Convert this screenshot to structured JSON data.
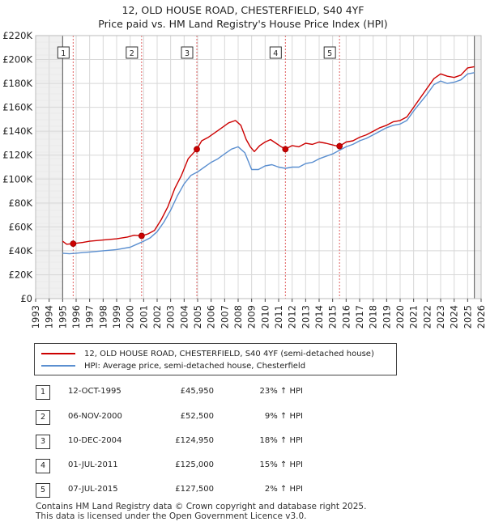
{
  "chart_data": {
    "type": "line",
    "title": "12, OLD HOUSE ROAD, CHESTERFIELD, S40 4YF",
    "subtitle": "Price paid vs. HM Land Registry's House Price Index (HPI)",
    "xlim": [
      1993,
      2026
    ],
    "ylim": [
      0,
      220000
    ],
    "x_ticks": [
      "1993",
      "1994",
      "1995",
      "1996",
      "1997",
      "1998",
      "1999",
      "2000",
      "2001",
      "2002",
      "2003",
      "2004",
      "2005",
      "2006",
      "2007",
      "2008",
      "2009",
      "2010",
      "2011",
      "2012",
      "2013",
      "2014",
      "2015",
      "2016",
      "2017",
      "2018",
      "2019",
      "2020",
      "2021",
      "2022",
      "2023",
      "2024",
      "2025",
      "2026"
    ],
    "y_ticks": [
      {
        "value": 0,
        "label": "£0"
      },
      {
        "value": 20000,
        "label": "£20K"
      },
      {
        "value": 40000,
        "label": "£40K"
      },
      {
        "value": 60000,
        "label": "£60K"
      },
      {
        "value": 80000,
        "label": "£80K"
      },
      {
        "value": 100000,
        "label": "£100K"
      },
      {
        "value": 120000,
        "label": "£120K"
      },
      {
        "value": 140000,
        "label": "£140K"
      },
      {
        "value": 160000,
        "label": "£160K"
      },
      {
        "value": 180000,
        "label": "£180K"
      },
      {
        "value": 200000,
        "label": "£200K"
      },
      {
        "value": 220000,
        "label": "£220K"
      }
    ],
    "data_range": [
      1995.0,
      2025.5
    ],
    "series": [
      {
        "name": "12, OLD HOUSE ROAD, CHESTERFIELD, S40 4YF (semi-detached house)",
        "color": "#cc0000",
        "points": [
          [
            1995.0,
            48000
          ],
          [
            1995.3,
            45500
          ],
          [
            1995.78,
            45950
          ],
          [
            1996.5,
            47000
          ],
          [
            1997,
            48000
          ],
          [
            1998,
            49000
          ],
          [
            1999,
            50000
          ],
          [
            1999.8,
            51500
          ],
          [
            2000.3,
            53000
          ],
          [
            2000.85,
            52500
          ],
          [
            2001.3,
            54000
          ],
          [
            2001.8,
            57000
          ],
          [
            2002.3,
            66000
          ],
          [
            2002.8,
            77000
          ],
          [
            2003.3,
            92000
          ],
          [
            2003.8,
            103000
          ],
          [
            2004.3,
            117000
          ],
          [
            2004.94,
            124950
          ],
          [
            2005.3,
            132000
          ],
          [
            2005.8,
            135000
          ],
          [
            2006.3,
            139000
          ],
          [
            2006.8,
            143000
          ],
          [
            2007.3,
            147000
          ],
          [
            2007.8,
            149000
          ],
          [
            2008.2,
            145000
          ],
          [
            2008.6,
            133000
          ],
          [
            2008.9,
            127000
          ],
          [
            2009.2,
            123000
          ],
          [
            2009.6,
            128000
          ],
          [
            2010.0,
            131000
          ],
          [
            2010.4,
            133000
          ],
          [
            2010.8,
            130000
          ],
          [
            2011.2,
            127000
          ],
          [
            2011.5,
            125000
          ],
          [
            2012,
            128000
          ],
          [
            2012.5,
            127000
          ],
          [
            2013,
            130000
          ],
          [
            2013.5,
            129000
          ],
          [
            2014,
            131000
          ],
          [
            2014.5,
            130000
          ],
          [
            2015.2,
            128000
          ],
          [
            2015.51,
            127500
          ],
          [
            2016,
            131000
          ],
          [
            2016.5,
            132000
          ],
          [
            2017,
            135000
          ],
          [
            2017.5,
            137000
          ],
          [
            2018,
            140000
          ],
          [
            2018.5,
            143000
          ],
          [
            2019,
            145000
          ],
          [
            2019.5,
            148000
          ],
          [
            2020,
            149000
          ],
          [
            2020.5,
            152000
          ],
          [
            2021,
            160000
          ],
          [
            2021.5,
            168000
          ],
          [
            2022,
            176000
          ],
          [
            2022.5,
            184000
          ],
          [
            2023,
            188000
          ],
          [
            2023.5,
            186000
          ],
          [
            2024,
            185000
          ],
          [
            2024.5,
            187000
          ],
          [
            2025,
            193000
          ],
          [
            2025.5,
            194000
          ]
        ]
      },
      {
        "name": "HPI: Average price, semi-detached house, Chesterfield",
        "color": "#5b8fd0",
        "points": [
          [
            1995.0,
            38000
          ],
          [
            1995.5,
            37500
          ],
          [
            1996,
            38000
          ],
          [
            1996.5,
            38500
          ],
          [
            1997,
            39000
          ],
          [
            1998,
            40000
          ],
          [
            1999,
            41000
          ],
          [
            2000,
            43000
          ],
          [
            2000.5,
            45500
          ],
          [
            2001,
            48000
          ],
          [
            2001.5,
            51000
          ],
          [
            2002,
            56000
          ],
          [
            2002.5,
            64000
          ],
          [
            2003,
            74000
          ],
          [
            2003.5,
            86000
          ],
          [
            2004,
            96000
          ],
          [
            2004.5,
            103000
          ],
          [
            2005,
            106000
          ],
          [
            2005.5,
            110000
          ],
          [
            2006,
            114000
          ],
          [
            2006.5,
            117000
          ],
          [
            2007,
            121000
          ],
          [
            2007.5,
            125000
          ],
          [
            2008,
            127000
          ],
          [
            2008.5,
            122000
          ],
          [
            2009,
            108000
          ],
          [
            2009.5,
            108000
          ],
          [
            2010,
            111000
          ],
          [
            2010.5,
            112000
          ],
          [
            2011,
            110000
          ],
          [
            2011.5,
            109000
          ],
          [
            2012,
            110000
          ],
          [
            2012.5,
            110000
          ],
          [
            2013,
            113000
          ],
          [
            2013.5,
            114000
          ],
          [
            2014,
            117000
          ],
          [
            2014.5,
            119000
          ],
          [
            2015,
            121000
          ],
          [
            2015.5,
            124000
          ],
          [
            2016,
            127000
          ],
          [
            2016.5,
            129000
          ],
          [
            2017,
            132000
          ],
          [
            2017.5,
            134000
          ],
          [
            2018,
            137000
          ],
          [
            2018.5,
            140000
          ],
          [
            2019,
            143000
          ],
          [
            2019.5,
            145000
          ],
          [
            2020,
            146000
          ],
          [
            2020.5,
            149000
          ],
          [
            2021,
            157000
          ],
          [
            2021.5,
            164000
          ],
          [
            2022,
            171000
          ],
          [
            2022.5,
            179000
          ],
          [
            2023,
            182000
          ],
          [
            2023.5,
            180000
          ],
          [
            2024,
            181000
          ],
          [
            2024.5,
            183000
          ],
          [
            2025,
            188000
          ],
          [
            2025.5,
            189000
          ]
        ]
      }
    ],
    "sales": [
      {
        "label": "1",
        "date": "12-OCT-1995",
        "x": 1995.78,
        "price": 45950,
        "price_label": "£45,950",
        "hpi": "23% ↑ HPI"
      },
      {
        "label": "2",
        "date": "06-NOV-2000",
        "x": 2000.85,
        "price": 52500,
        "price_label": "£52,500",
        "hpi": "9% ↑ HPI"
      },
      {
        "label": "3",
        "date": "10-DEC-2004",
        "x": 2004.94,
        "price": 124950,
        "price_label": "£124,950",
        "hpi": "18% ↑ HPI"
      },
      {
        "label": "4",
        "date": "01-JUL-2011",
        "x": 2011.5,
        "price": 125000,
        "price_label": "£125,000",
        "hpi": "15% ↑ HPI"
      },
      {
        "label": "5",
        "date": "07-JUL-2015",
        "x": 2015.51,
        "price": 127500,
        "price_label": "£127,500",
        "hpi": "2% ↑ HPI"
      }
    ],
    "legend": [
      "12, OLD HOUSE ROAD, CHESTERFIELD, S40 4YF (semi-detached house)",
      "HPI: Average price, semi-detached house, Chesterfield"
    ],
    "legend_position": "bottom"
  },
  "footer": {
    "line1": "Contains HM Land Registry data © Crown copyright and database right 2025.",
    "line2": "This data is licensed under the Open Government Licence v3.0."
  }
}
